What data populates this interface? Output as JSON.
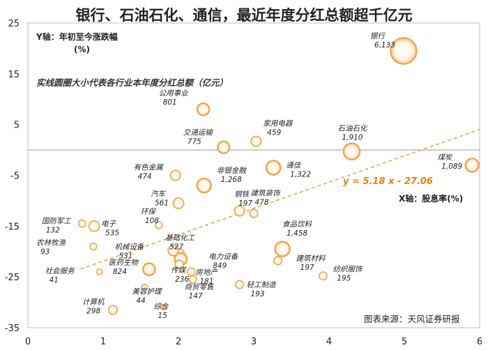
{
  "chart_data": {
    "type": "scatter",
    "title": "银行、石油石化、通信，最近年度分红总额超千亿元",
    "ylabel": "Y轴：年初至今涨跌幅",
    "ylabel_unit": "(%)",
    "xlabel": "X轴：股息率(%)",
    "annotation": "实线圆圈大小代表各行业本年度分红总额（亿元）",
    "source": "图表来源：天风证券研报",
    "xlim": [
      0,
      6
    ],
    "ylim": [
      -35,
      25
    ],
    "xticks": [
      0,
      1,
      2,
      3,
      4,
      5,
      6
    ],
    "yticks": [
      25,
      15,
      5,
      -5,
      -15,
      -25,
      -35
    ],
    "trendline": {
      "equation": "y = 5.18 x - 27.06",
      "slope": 5.18,
      "intercept": -27.06,
      "x_range": [
        0.7,
        6
      ]
    },
    "points": [
      {
        "name": "银行",
        "value": "6,133",
        "x": 4.99,
        "y": 19.5,
        "size": 6133
      },
      {
        "name": "公用事业",
        "value": "801",
        "x": 2.33,
        "y": 8.0,
        "size": 801
      },
      {
        "name": "家用电器",
        "value": "459",
        "x": 3.03,
        "y": 1.7,
        "size": 459
      },
      {
        "name": "石油石化",
        "value": "1,910",
        "x": 4.3,
        "y": -0.3,
        "size": 1910
      },
      {
        "name": "交通运输",
        "value": "775",
        "x": 2.6,
        "y": 0.5,
        "size": 775
      },
      {
        "name": "煤炭",
        "value": "1,089",
        "x": 5.9,
        "y": -3.0,
        "size": 1089
      },
      {
        "name": "通信",
        "value": "1,322",
        "x": 3.26,
        "y": -3.5,
        "size": 1322
      },
      {
        "name": "有色金属",
        "value": "474",
        "x": 1.96,
        "y": -5.0,
        "size": 474
      },
      {
        "name": "非银金融",
        "value": "1,268",
        "x": 2.34,
        "y": -7.0,
        "size": 1268
      },
      {
        "name": "汽车",
        "value": "561",
        "x": 2.0,
        "y": -10.5,
        "size": 561
      },
      {
        "name": "钢铁",
        "value": "197",
        "x": 3.0,
        "y": -12.5,
        "size": 197
      },
      {
        "name": "建筑装饰",
        "value": "478",
        "x": 2.81,
        "y": -12.0,
        "size": 478
      },
      {
        "name": "国防军工",
        "value": "132",
        "x": 0.72,
        "y": -14.5,
        "size": 132
      },
      {
        "name": "电子",
        "value": "535",
        "x": 0.88,
        "y": -15.0,
        "size": 535
      },
      {
        "name": "环保",
        "value": "108",
        "x": 1.74,
        "y": -14.8,
        "size": 108
      },
      {
        "name": "基础化工",
        "value": "527",
        "x": 2.01,
        "y": -20.5,
        "size": 527
      },
      {
        "name": "食品饮料",
        "value": "1,458",
        "x": 3.38,
        "y": -19.5,
        "size": 1458
      },
      {
        "name": "农林牧渔",
        "value": "93",
        "x": 0.87,
        "y": -19.0,
        "size": 93
      },
      {
        "name": "机械设备",
        "value": "531",
        "x": 1.93,
        "y": -19.8,
        "size": 531
      },
      {
        "name": "电力设备",
        "value": "849",
        "x": 2.03,
        "y": -21.5,
        "size": 849
      },
      {
        "name": "建筑材料",
        "value": "197",
        "x": 3.32,
        "y": -21.8,
        "size": 197
      },
      {
        "name": "医药生物",
        "value": "824",
        "x": 1.61,
        "y": -23.5,
        "size": 824
      },
      {
        "name": "传媒",
        "value": "236",
        "x": 2.01,
        "y": -22.5,
        "size": 236
      },
      {
        "name": "房地产",
        "value": "181",
        "x": 2.17,
        "y": -24.0,
        "size": 181
      },
      {
        "name": "社会服务",
        "value": "41",
        "x": 0.95,
        "y": -24.0,
        "size": 41
      },
      {
        "name": "纺织服饰",
        "value": "195",
        "x": 3.92,
        "y": -24.8,
        "size": 195
      },
      {
        "name": "美容护理",
        "value": "44",
        "x": 1.55,
        "y": -27.0,
        "size": 44
      },
      {
        "name": "轻工制造",
        "value": "193",
        "x": 2.81,
        "y": -26.5,
        "size": 193
      },
      {
        "name": "商贸零售",
        "value": "147",
        "x": 2.19,
        "y": -25.5,
        "size": 147
      },
      {
        "name": "计算机",
        "value": "298",
        "x": 1.13,
        "y": -31.5,
        "size": 298
      },
      {
        "name": "综合",
        "value": "15",
        "x": 1.8,
        "y": -31.0,
        "size": 15
      }
    ]
  }
}
